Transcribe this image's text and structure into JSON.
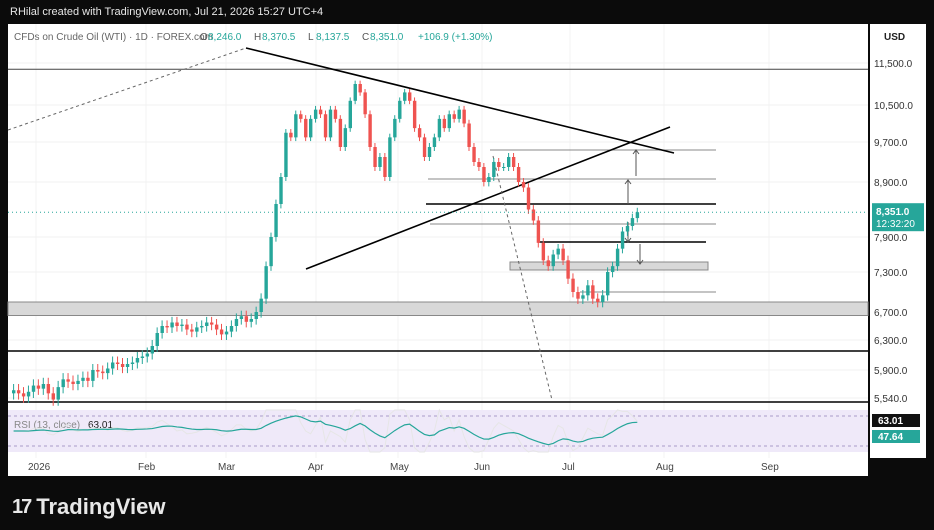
{
  "header": {
    "credit": "RHilal created with TradingView.com, Jul 21, 2026 15:27 UTC+4"
  },
  "footer": {
    "brand": "TradingView",
    "logo_glyph": "17"
  },
  "chart_data": {
    "type": "candlestick",
    "symbol_title": "CFDs on Crude Oil (WTI) · 1D · FOREX.com",
    "ohlc_labels": {
      "o_label": "O",
      "o": "8,246.0",
      "h_label": "H",
      "h": "8,370.5",
      "l_label": "L",
      "l": "8,137.5",
      "c_label": "C",
      "c": "8,351.0",
      "chg": "+106.9 (+1.30%)"
    },
    "currency": "USD",
    "y_ticks": [
      11500,
      10500,
      9700,
      8900,
      7900,
      7300,
      6700,
      6300,
      5900,
      5540
    ],
    "y_tick_labels": [
      "11,500.0",
      "10,500.0",
      "9,700.0",
      "8,900.0",
      "7,900.0",
      "7,300.0",
      "6,700.0",
      "6,300.0",
      "5,900.0",
      "5,540.0"
    ],
    "x_labels": [
      "2026",
      "Feb",
      "Mar",
      "Apr",
      "May",
      "Jun",
      "Jul",
      "Aug",
      "Sep"
    ],
    "last_price": {
      "value": 8351.0,
      "label": "8,351.0",
      "countdown": "12:32:20",
      "color": "#26a69a"
    },
    "colors": {
      "up": "#26a69a",
      "down": "#ef5350",
      "rsi_line": "#e6e6e6",
      "rsi_ma": "#26a69a",
      "rsi_band": "#4a3f7a",
      "line": "#000000"
    },
    "rsi": {
      "label": "RSI (13, close)",
      "value_text": "63.01",
      "ma_text": "47.64",
      "value": 63.01,
      "ma": 47.64
    },
    "closes": [
      5640,
      5600,
      5560,
      5620,
      5700,
      5660,
      5720,
      5600,
      5520,
      5680,
      5780,
      5750,
      5720,
      5760,
      5800,
      5760,
      5900,
      5880,
      5860,
      5920,
      6000,
      5980,
      5940,
      5980,
      6000,
      6060,
      6080,
      6120,
      6220,
      6400,
      6500,
      6480,
      6550,
      6500,
      6520,
      6450,
      6420,
      6480,
      6500,
      6550,
      6520,
      6450,
      6380,
      6420,
      6500,
      6600,
      6640,
      6560,
      6600,
      6700,
      6900,
      7400,
      7900,
      8500,
      9000,
      9900,
      9800,
      10300,
      10200,
      9800,
      10200,
      10400,
      10300,
      9800,
      10400,
      10200,
      9600,
      10000,
      10600,
      11000,
      10800,
      10300,
      9600,
      9200,
      9400,
      9000,
      9800,
      10200,
      10600,
      10800,
      10600,
      10000,
      9800,
      9400,
      9600,
      9800,
      10200,
      10000,
      10300,
      10200,
      10400,
      10100,
      9600,
      9300,
      9200,
      8900,
      9000,
      9300,
      9200,
      9200,
      9400,
      9200,
      8900,
      8800,
      8400,
      8200,
      7800,
      7500,
      7400,
      7600,
      7700,
      7500,
      7200,
      7000,
      6900,
      6950,
      7100,
      6900,
      6850,
      6950,
      7300,
      7400,
      7700,
      8000,
      8100,
      8244,
      8351
    ],
    "lines": [
      {
        "kind": "hline",
        "price": 11350
      },
      {
        "kind": "hline",
        "price": 6120
      },
      {
        "kind": "hline",
        "price": 5480
      },
      {
        "kind": "trend",
        "desc": "upper descending trendline"
      },
      {
        "kind": "trend",
        "desc": "ascending trendline"
      },
      {
        "kind": "zone",
        "desc": "support box 6,650-6,850"
      }
    ]
  }
}
